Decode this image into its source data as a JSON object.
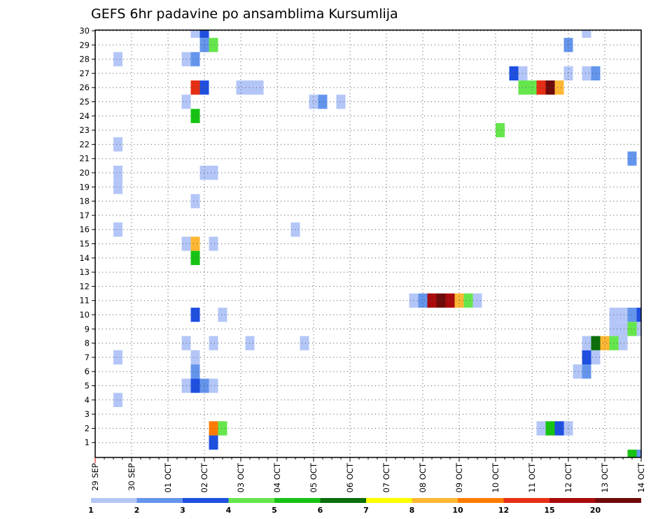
{
  "chart_data": {
    "type": "heatmap",
    "title": "GEFS 6hr padavine po ansamblima Kursumlija",
    "x_tick_labels": [
      "29 SEP",
      "30 SEP",
      "01 OCT",
      "02 OCT",
      "03 OCT",
      "04 OCT",
      "05 OCT",
      "06 OCT",
      "07 OCT",
      "08 OCT",
      "09 OCT",
      "10 OCT",
      "11 OCT",
      "12 OCT",
      "13 OCT",
      "14 OCT"
    ],
    "y_tick_labels": [
      "1",
      "2",
      "3",
      "4",
      "5",
      "6",
      "7",
      "8",
      "9",
      "10",
      "11",
      "12",
      "13",
      "14",
      "15",
      "16",
      "17",
      "18",
      "19",
      "20",
      "21",
      "22",
      "23",
      "24",
      "25",
      "26",
      "27",
      "28",
      "29",
      "30"
    ],
    "x_range_days": [
      0,
      15
    ],
    "y_range": [
      0,
      30
    ],
    "grid": true,
    "colorbar": {
      "position": "bottom",
      "labels": [
        "1",
        "2",
        "3",
        "4",
        "5",
        "6",
        "7",
        "8",
        "10",
        "12",
        "15",
        "20"
      ],
      "colors": [
        "#b3c6f7",
        "#6495ed",
        "#1e4fe0",
        "#66e64d",
        "#16c314",
        "#0a6e0a",
        "#ffff00",
        "#ffb733",
        "#ff7c00",
        "#e62e14",
        "#aa0a0a",
        "#6e0a0a"
      ]
    },
    "cells": [
      {
        "x": 0.625,
        "y": 28,
        "c": 0
      },
      {
        "x": 0.625,
        "y": 22,
        "c": 0
      },
      {
        "x": 0.625,
        "y": 20,
        "c": 0
      },
      {
        "x": 0.625,
        "y": 19,
        "c": 0
      },
      {
        "x": 0.625,
        "y": 16,
        "c": 0
      },
      {
        "x": 0.625,
        "y": 7,
        "c": 0
      },
      {
        "x": 0.625,
        "y": 4,
        "c": 0
      },
      {
        "x": 2.5,
        "y": 28,
        "c": 0
      },
      {
        "x": 2.5,
        "y": 25,
        "c": 0
      },
      {
        "x": 2.5,
        "y": 15,
        "c": 0
      },
      {
        "x": 2.5,
        "y": 8,
        "c": 0
      },
      {
        "x": 2.5,
        "y": 5,
        "c": 0
      },
      {
        "x": 2.75,
        "y": 30,
        "c": 0
      },
      {
        "x": 2.75,
        "y": 28,
        "c": 1
      },
      {
        "x": 2.75,
        "y": 26,
        "c": 9
      },
      {
        "x": 2.75,
        "y": 24,
        "c": 4
      },
      {
        "x": 2.75,
        "y": 18,
        "c": 0
      },
      {
        "x": 2.75,
        "y": 15,
        "c": 7
      },
      {
        "x": 2.75,
        "y": 14,
        "c": 4
      },
      {
        "x": 2.75,
        "y": 10,
        "c": 2
      },
      {
        "x": 2.75,
        "y": 7,
        "c": 0
      },
      {
        "x": 2.75,
        "y": 6,
        "c": 1
      },
      {
        "x": 2.75,
        "y": 5,
        "c": 2
      },
      {
        "x": 3.0,
        "y": 30,
        "c": 2
      },
      {
        "x": 3.0,
        "y": 29,
        "c": 1
      },
      {
        "x": 3.0,
        "y": 26,
        "c": 2
      },
      {
        "x": 3.0,
        "y": 20,
        "c": 0
      },
      {
        "x": 3.0,
        "y": 5,
        "c": 1
      },
      {
        "x": 3.25,
        "y": 29,
        "c": 3
      },
      {
        "x": 3.25,
        "y": 20,
        "c": 0
      },
      {
        "x": 3.25,
        "y": 15,
        "c": 0
      },
      {
        "x": 3.25,
        "y": 8,
        "c": 0
      },
      {
        "x": 3.25,
        "y": 5,
        "c": 0
      },
      {
        "x": 3.25,
        "y": 2,
        "c": 8
      },
      {
        "x": 3.25,
        "y": 1,
        "c": 2
      },
      {
        "x": 3.5,
        "y": 2,
        "c": 3
      },
      {
        "x": 3.5,
        "y": 10,
        "c": 0
      },
      {
        "x": 4.0,
        "y": 26,
        "c": 0
      },
      {
        "x": 4.25,
        "y": 26,
        "c": 0
      },
      {
        "x": 4.5,
        "y": 26,
        "c": 0
      },
      {
        "x": 4.25,
        "y": 8,
        "c": 0
      },
      {
        "x": 5.5,
        "y": 16,
        "c": 0
      },
      {
        "x": 5.75,
        "y": 8,
        "c": 0
      },
      {
        "x": 6.0,
        "y": 25,
        "c": 0
      },
      {
        "x": 6.25,
        "y": 25,
        "c": 1
      },
      {
        "x": 6.75,
        "y": 25,
        "c": 0
      },
      {
        "x": 8.75,
        "y": 11,
        "c": 0
      },
      {
        "x": 9.0,
        "y": 11,
        "c": 1
      },
      {
        "x": 9.25,
        "y": 11,
        "c": 10
      },
      {
        "x": 9.5,
        "y": 11,
        "c": 11
      },
      {
        "x": 9.75,
        "y": 11,
        "c": 10
      },
      {
        "x": 10.0,
        "y": 11,
        "c": 7
      },
      {
        "x": 10.25,
        "y": 11,
        "c": 3
      },
      {
        "x": 10.5,
        "y": 11,
        "c": 0
      },
      {
        "x": 11.125,
        "y": 23,
        "c": 3
      },
      {
        "x": 11.5,
        "y": 27,
        "c": 2
      },
      {
        "x": 11.75,
        "y": 27,
        "c": 0
      },
      {
        "x": 11.75,
        "y": 26,
        "c": 3
      },
      {
        "x": 12.0,
        "y": 26,
        "c": 3
      },
      {
        "x": 12.25,
        "y": 26,
        "c": 9
      },
      {
        "x": 12.5,
        "y": 26,
        "c": 11
      },
      {
        "x": 12.75,
        "y": 26,
        "c": 7
      },
      {
        "x": 12.25,
        "y": 2,
        "c": 0
      },
      {
        "x": 12.5,
        "y": 2,
        "c": 4
      },
      {
        "x": 12.75,
        "y": 2,
        "c": 2
      },
      {
        "x": 13.0,
        "y": 2,
        "c": 0
      },
      {
        "x": 13.0,
        "y": 29,
        "c": 1
      },
      {
        "x": 13.0,
        "y": 27,
        "c": 0
      },
      {
        "x": 13.5,
        "y": 30,
        "c": 0
      },
      {
        "x": 13.5,
        "y": 27,
        "c": 0
      },
      {
        "x": 13.75,
        "y": 27,
        "c": 1
      },
      {
        "x": 13.25,
        "y": 6,
        "c": 0
      },
      {
        "x": 13.5,
        "y": 6,
        "c": 1
      },
      {
        "x": 13.5,
        "y": 7,
        "c": 2
      },
      {
        "x": 13.75,
        "y": 7,
        "c": 0
      },
      {
        "x": 13.5,
        "y": 8,
        "c": 0
      },
      {
        "x": 13.75,
        "y": 8,
        "c": 5
      },
      {
        "x": 14.0,
        "y": 8,
        "c": 7
      },
      {
        "x": 14.25,
        "y": 8,
        "c": 3
      },
      {
        "x": 14.5,
        "y": 8,
        "c": 0
      },
      {
        "x": 14.25,
        "y": 10,
        "c": 0
      },
      {
        "x": 14.5,
        "y": 10,
        "c": 0
      },
      {
        "x": 14.75,
        "y": 10,
        "c": 1
      },
      {
        "x": 15.0,
        "y": 10,
        "c": 2
      },
      {
        "x": 15.25,
        "y": 10,
        "c": 8
      },
      {
        "x": 14.25,
        "y": 9,
        "c": 0
      },
      {
        "x": 14.5,
        "y": 9,
        "c": 0
      },
      {
        "x": 14.75,
        "y": 9,
        "c": 3
      },
      {
        "x": 15.0,
        "y": 9,
        "c": 0
      },
      {
        "x": 15.5,
        "y": 9,
        "c": 2
      },
      {
        "x": 14.75,
        "y": 21,
        "c": 1
      },
      {
        "x": 15.25,
        "y": 30,
        "c": 0
      },
      {
        "x": 15.25,
        "y": 22,
        "c": 0
      },
      {
        "x": 14.75,
        "y": 0,
        "c": 4
      },
      {
        "x": 15.0,
        "y": 0,
        "c": 1
      }
    ]
  }
}
